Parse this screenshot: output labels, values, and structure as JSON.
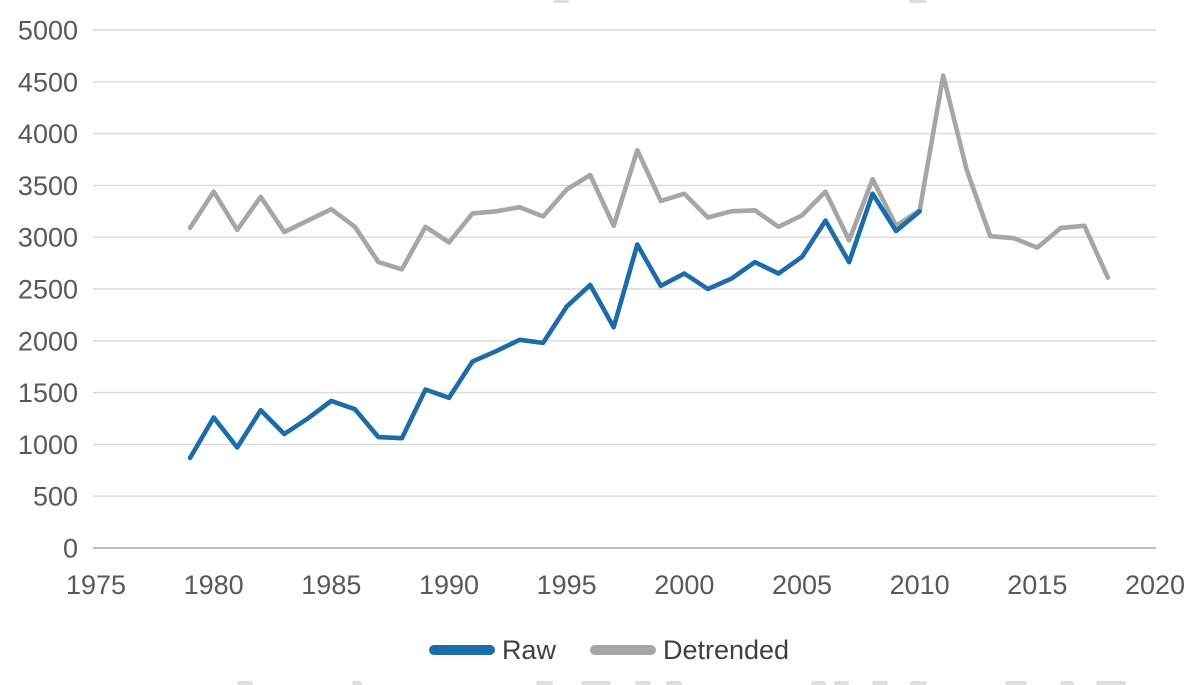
{
  "page": {
    "background": "#FFFFFF"
  },
  "chart_data": {
    "type": "line",
    "title": "",
    "xlabel": "",
    "ylabel": "",
    "x": [
      1979,
      1980,
      1981,
      1982,
      1983,
      1984,
      1985,
      1986,
      1987,
      1988,
      1989,
      1990,
      1991,
      1992,
      1993,
      1994,
      1995,
      1996,
      1997,
      1998,
      1999,
      2000,
      2001,
      2002,
      2003,
      2004,
      2005,
      2006,
      2007,
      2008,
      2009,
      2010,
      2011,
      2012,
      2013,
      2014,
      2015,
      2016,
      2017,
      2018
    ],
    "series": [
      {
        "name": "Raw",
        "color": "#1B6CAA",
        "values": [
          870,
          1260,
          970,
          1330,
          1100,
          1250,
          1420,
          1340,
          1070,
          1060,
          1530,
          1450,
          1800,
          1900,
          2010,
          1980,
          2330,
          2540,
          2130,
          2930,
          2530,
          2650,
          2500,
          2600,
          2760,
          2650,
          2810,
          3160,
          2760,
          3420,
          3060,
          3250,
          null,
          null,
          null,
          null,
          null,
          null,
          null,
          null
        ]
      },
      {
        "name": "Detrended",
        "color": "#A6A6A6",
        "values": [
          3090,
          3440,
          3070,
          3390,
          3050,
          3160,
          3270,
          3100,
          2760,
          2690,
          3100,
          2950,
          3230,
          3250,
          3290,
          3200,
          3460,
          3600,
          3110,
          3840,
          3350,
          3420,
          3190,
          3250,
          3260,
          3100,
          3210,
          3440,
          2970,
          3560,
          3110,
          3260,
          4560,
          3650,
          3010,
          2990,
          2900,
          3090,
          3110,
          2610
        ]
      }
    ],
    "xlim": [
      1975,
      2020
    ],
    "ylim": [
      0,
      5000
    ],
    "x_ticks": [
      1975,
      1980,
      1985,
      1990,
      1995,
      2000,
      2005,
      2010,
      2015,
      2020
    ],
    "y_ticks": [
      0,
      500,
      1000,
      1500,
      2000,
      2500,
      3000,
      3500,
      4000,
      4500,
      5000
    ],
    "grid": "horizontal",
    "legend_position": "bottom-center",
    "tick_label_color": "#595959",
    "legend_label_color": "#404040",
    "gridline_color": "#D9D9D9",
    "axis_line_color": "#BFBFBF"
  }
}
